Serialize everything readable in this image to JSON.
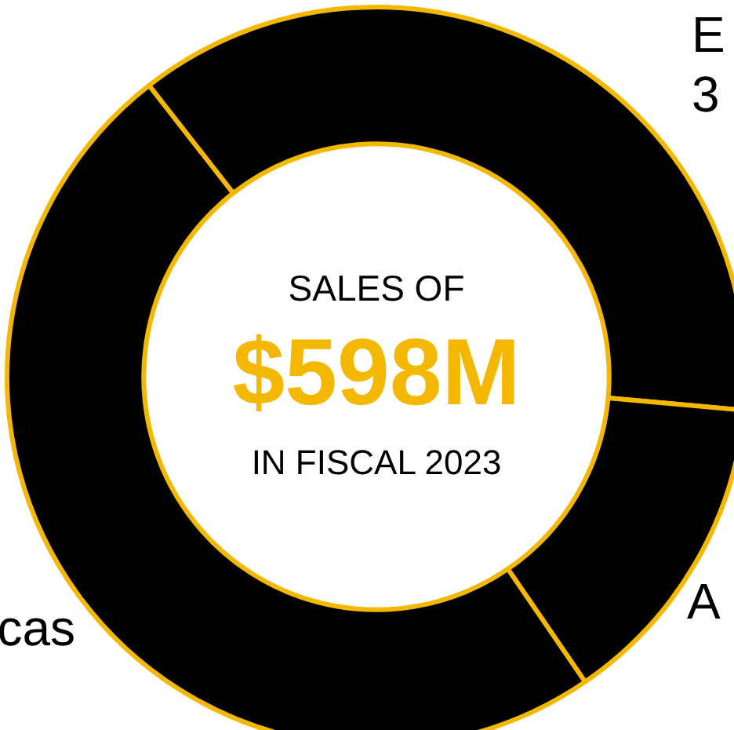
{
  "chart_data": {
    "type": "donut",
    "title": "SALES OF",
    "categories": [
      "E",
      "A",
      "cas"
    ],
    "values": [
      37,
      14,
      49
    ],
    "colors": [
      "#000000",
      "#000000",
      "#000000"
    ],
    "annotations": [
      "$598M",
      "IN FISCAL 2023",
      "3"
    ],
    "legend": false
  }
}
